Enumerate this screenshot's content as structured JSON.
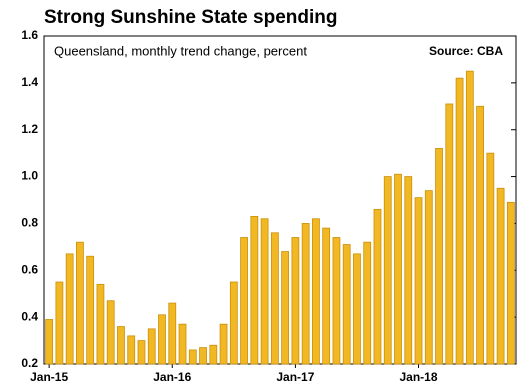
{
  "chart_data": {
    "type": "bar",
    "title": "Strong Sunshine State spending",
    "subtitle": "Queensland, monthly trend change, percent",
    "source": "Source: CBA",
    "categories": [
      "Jan-15",
      null,
      null,
      null,
      null,
      null,
      null,
      null,
      null,
      null,
      null,
      null,
      "Jan-16",
      null,
      null,
      null,
      null,
      null,
      null,
      null,
      null,
      null,
      null,
      null,
      "Jan-17",
      null,
      null,
      null,
      null,
      null,
      null,
      null,
      null,
      null,
      null,
      null,
      "Jan-18",
      null,
      null,
      null,
      null,
      null,
      null,
      null,
      null,
      null
    ],
    "values": [
      0.39,
      0.55,
      0.67,
      0.72,
      0.66,
      0.54,
      0.47,
      0.36,
      0.32,
      0.3,
      0.35,
      0.41,
      0.46,
      0.37,
      0.26,
      0.27,
      0.28,
      0.37,
      0.55,
      0.74,
      0.83,
      0.82,
      0.76,
      0.68,
      0.74,
      0.8,
      0.82,
      0.78,
      0.74,
      0.71,
      0.67,
      0.72,
      0.86,
      1.0,
      1.01,
      1.0,
      0.91,
      0.94,
      1.12,
      1.31,
      1.42,
      1.45,
      1.3,
      1.1,
      0.95,
      0.89
    ],
    "color": "#f2b824",
    "ylim": [
      0.2,
      1.6
    ],
    "yticks": [
      0.2,
      0.4,
      0.6,
      0.8,
      {
        "value": 1,
        "label": "1.0"
      },
      1.2,
      1.4,
      1.6
    ],
    "grid": false
  }
}
